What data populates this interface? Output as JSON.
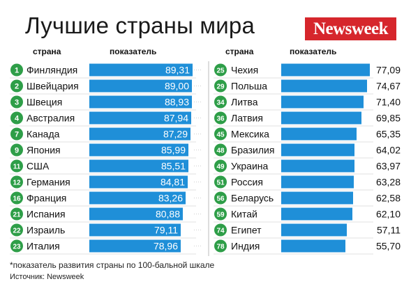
{
  "header": {
    "title": "Лучшие страны мира",
    "logo": "Newsweek",
    "col_country": "страна",
    "col_score": "показатель"
  },
  "footer": {
    "footnote": "*показатель развития страны по 100-бальной шкале",
    "source": "Источник: Newsweek"
  },
  "colors": {
    "bar": "#1f8fd8",
    "badge": "#2e9e48",
    "label": "#ffffff"
  },
  "chart_data": [
    {
      "type": "bar",
      "orientation": "horizontal",
      "title": "",
      "xlabel": "показатель",
      "ylabel": "страна",
      "grid": false,
      "items": [
        {
          "rank": "1",
          "country": "Финляндия",
          "value": 89.31,
          "label": "89,31"
        },
        {
          "rank": "2",
          "country": "Швейцария",
          "value": 89.0,
          "label": "89,00"
        },
        {
          "rank": "3",
          "country": "Швеция",
          "value": 88.93,
          "label": "88,93"
        },
        {
          "rank": "4",
          "country": "Австралия",
          "value": 87.94,
          "label": "87,94"
        },
        {
          "rank": "7",
          "country": "Канада",
          "value": 87.29,
          "label": "87,29"
        },
        {
          "rank": "9",
          "country": "Япония",
          "value": 85.99,
          "label": "85,99"
        },
        {
          "rank": "11",
          "country": "США",
          "value": 85.51,
          "label": "85,51"
        },
        {
          "rank": "12",
          "country": "Германия",
          "value": 84.81,
          "label": "84,81"
        },
        {
          "rank": "16",
          "country": "Франция",
          "value": 83.26,
          "label": "83,26"
        },
        {
          "rank": "21",
          "country": "Испания",
          "value": 80.88,
          "label": "80,88"
        },
        {
          "rank": "22",
          "country": "Израиль",
          "value": 79.11,
          "label": "79,11"
        },
        {
          "rank": "23",
          "country": "Италия",
          "value": 78.96,
          "label": "78,96"
        }
      ]
    },
    {
      "type": "bar",
      "orientation": "horizontal",
      "title": "",
      "xlabel": "показатель",
      "ylabel": "страна",
      "grid": false,
      "items": [
        {
          "rank": "25",
          "country": "Чехия",
          "value": 77.09,
          "label": "77,09"
        },
        {
          "rank": "29",
          "country": "Польша",
          "value": 74.67,
          "label": "74,67"
        },
        {
          "rank": "34",
          "country": "Литва",
          "value": 71.4,
          "label": "71,40"
        },
        {
          "rank": "36",
          "country": "Латвия",
          "value": 69.85,
          "label": "69,85"
        },
        {
          "rank": "45",
          "country": "Мексика",
          "value": 65.35,
          "label": "65,35"
        },
        {
          "rank": "48",
          "country": "Бразилия",
          "value": 64.02,
          "label": "64,02"
        },
        {
          "rank": "49",
          "country": "Украина",
          "value": 63.97,
          "label": "63,97"
        },
        {
          "rank": "51",
          "country": "Россия",
          "value": 63.28,
          "label": "63,28"
        },
        {
          "rank": "56",
          "country": "Беларусь",
          "value": 62.58,
          "label": "62,58"
        },
        {
          "rank": "59",
          "country": "Китай",
          "value": 62.1,
          "label": "62,10"
        },
        {
          "rank": "74",
          "country": "Египет",
          "value": 57.11,
          "label": "57,11"
        },
        {
          "rank": "78",
          "country": "Индия",
          "value": 55.7,
          "label": "55,70"
        }
      ]
    }
  ]
}
